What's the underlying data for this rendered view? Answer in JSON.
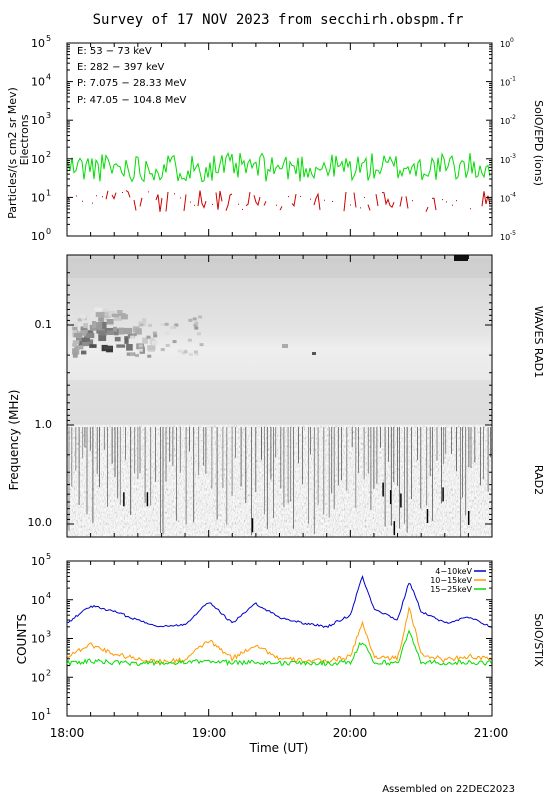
{
  "title": "Survey of 17 NOV 2023 from secchirh.obspm.fr",
  "footer": "Assembled on 22DEC2023",
  "x_axis": {
    "label": "Time (UT)",
    "ticks": [
      "18:00",
      "19:00",
      "20:00",
      "21:00"
    ]
  },
  "colors": {
    "green": "#00dd00",
    "red": "#cc0000",
    "black": "#000000",
    "blue": "#0000cc",
    "orange": "#ff9900"
  },
  "panel_epd": {
    "ylabel_line1": "Particles/(s cm2 sr Mev)",
    "ylabel_line2": "Electrons",
    "right_label": "SolO/EPD (ions)",
    "left_ticks": [
      "10",
      "10",
      "10",
      "10",
      "10",
      "10"
    ],
    "left_exps": [
      "5",
      "4",
      "3",
      "2",
      "1",
      "0"
    ],
    "right_ticks": [
      "10",
      "10",
      "10",
      "10",
      "10",
      "10"
    ],
    "right_exps": [
      "0",
      "-1",
      "-2",
      "-3",
      "-4",
      "-5"
    ],
    "legend": [
      {
        "text": "E: 53 − 73 keV",
        "color": "#00dd00"
      },
      {
        "text": "E: 282 − 397 keV",
        "color": "#cc0000"
      },
      {
        "text": "P: 7.075 − 28.33 MeV",
        "color": "#000000"
      },
      {
        "text": "P: 47.05 − 104.8 MeV",
        "color": "#0000cc"
      }
    ]
  },
  "panel_waves": {
    "ylabel": "Frequency (MHz)",
    "right_label_1": "WAVES RAD1",
    "right_label_2": "RAD2",
    "ticks": [
      "0.1",
      "1.0",
      "10.0"
    ]
  },
  "panel_stix": {
    "ylabel": "COUNTS",
    "right_label": "SolO/STIX",
    "ticks": [
      "10",
      "10",
      "10",
      "10",
      "10"
    ],
    "exps": [
      "5",
      "4",
      "3",
      "2",
      "1"
    ],
    "legend": [
      {
        "text": "4−10keV",
        "color": "#0000cc"
      },
      {
        "text": "10−15keV",
        "color": "#ff9900"
      },
      {
        "text": "15−25keV",
        "color": "#00dd00"
      }
    ]
  },
  "chart_data": [
    {
      "type": "line",
      "title": "SolO/EPD",
      "ylabel": "Particles/(s cm2 sr Mev) Electrons",
      "yscale": "log",
      "ylim": [
        1,
        100000
      ],
      "xlim": [
        "18:00",
        "21:00"
      ],
      "series": [
        {
          "name": "E: 53 - 73 keV",
          "x": [
            "18:00",
            "18:30",
            "19:00",
            "19:30",
            "20:00",
            "20:30",
            "21:00"
          ],
          "values": [
            60,
            55,
            60,
            55,
            60,
            60,
            55
          ]
        },
        {
          "name": "E: 282 - 397 keV",
          "x": [
            "18:00",
            "18:30",
            "19:00",
            "19:30",
            "20:00",
            "20:30",
            "21:00"
          ],
          "values": [
            8,
            7,
            9,
            8,
            7,
            9,
            8
          ]
        }
      ]
    },
    {
      "type": "heatmap",
      "title": "WAVES RAD1 / RAD2",
      "ylabel": "Frequency (MHz)",
      "yscale": "log",
      "ylim": [
        0.02,
        16
      ],
      "xlim": [
        "18:00",
        "21:00"
      ]
    },
    {
      "type": "line",
      "title": "SolO/STIX",
      "ylabel": "COUNTS",
      "yscale": "log",
      "ylim": [
        10,
        100000
      ],
      "xlim": [
        "18:00",
        "21:00"
      ],
      "x": [
        "18:00",
        "18:10",
        "18:20",
        "18:30",
        "18:40",
        "18:50",
        "19:00",
        "19:10",
        "19:20",
        "19:30",
        "19:40",
        "19:50",
        "20:00",
        "20:05",
        "20:10",
        "20:20",
        "20:25",
        "20:30",
        "20:40",
        "20:50",
        "21:00"
      ],
      "series": [
        {
          "name": "4-10keV",
          "values": [
            2500,
            7000,
            5000,
            3000,
            2000,
            2300,
            9000,
            2500,
            8000,
            3500,
            2500,
            2000,
            4000,
            40000,
            6000,
            3000,
            30000,
            5000,
            2500,
            3500,
            2000
          ]
        },
        {
          "name": "10-15keV",
          "values": [
            350,
            700,
            400,
            300,
            250,
            280,
            900,
            300,
            700,
            300,
            270,
            260,
            350,
            2500,
            350,
            300,
            6000,
            400,
            280,
            350,
            280
          ]
        },
        {
          "name": "15-25keV",
          "values": [
            230,
            260,
            240,
            230,
            230,
            235,
            270,
            235,
            250,
            230,
            230,
            230,
            240,
            900,
            240,
            235,
            1500,
            250,
            235,
            240,
            235
          ]
        }
      ]
    }
  ]
}
